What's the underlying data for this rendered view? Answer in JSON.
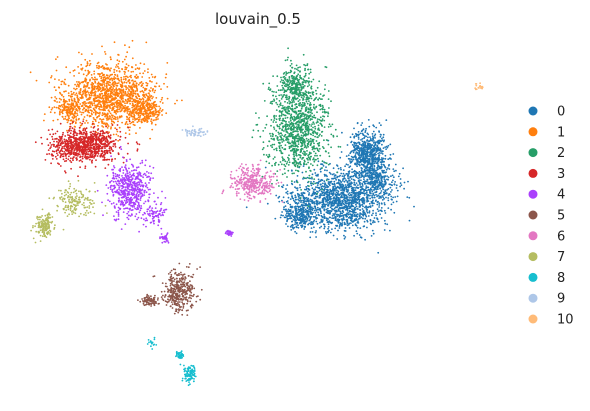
{
  "chart_data": {
    "type": "scatter",
    "title": "louvain_0.5",
    "xlabel": "",
    "ylabel": "",
    "grid": false,
    "axes_visible": false,
    "legend_placement": "right",
    "legend": {
      "entries": [
        {
          "label": "0",
          "color": "#1f77b4"
        },
        {
          "label": "1",
          "color": "#ff7f0e"
        },
        {
          "label": "2",
          "color": "#279e68"
        },
        {
          "label": "3",
          "color": "#d62728"
        },
        {
          "label": "4",
          "color": "#aa40fc"
        },
        {
          "label": "5",
          "color": "#8c564b"
        },
        {
          "label": "6",
          "color": "#e377c2"
        },
        {
          "label": "7",
          "color": "#b5bd61"
        },
        {
          "label": "8",
          "color": "#17becf"
        },
        {
          "label": "9",
          "color": "#aec7e8"
        },
        {
          "label": "10",
          "color": "#ffbb78"
        }
      ]
    },
    "series": [
      {
        "cluster": "0",
        "color": "#1f77b4",
        "approx_points": 2600
      },
      {
        "cluster": "1",
        "color": "#ff7f0e",
        "approx_points": 1800
      },
      {
        "cluster": "2",
        "color": "#279e68",
        "approx_points": 1300
      },
      {
        "cluster": "3",
        "color": "#d62728",
        "approx_points": 900
      },
      {
        "cluster": "4",
        "color": "#aa40fc",
        "approx_points": 700
      },
      {
        "cluster": "5",
        "color": "#8c564b",
        "approx_points": 450
      },
      {
        "cluster": "6",
        "color": "#e377c2",
        "approx_points": 350
      },
      {
        "cluster": "7",
        "color": "#b5bd61",
        "approx_points": 330
      },
      {
        "cluster": "8",
        "color": "#17becf",
        "approx_points": 160
      },
      {
        "cluster": "9",
        "color": "#aec7e8",
        "approx_points": 50
      },
      {
        "cluster": "10",
        "color": "#ffbb78",
        "approx_points": 20
      }
    ]
  }
}
